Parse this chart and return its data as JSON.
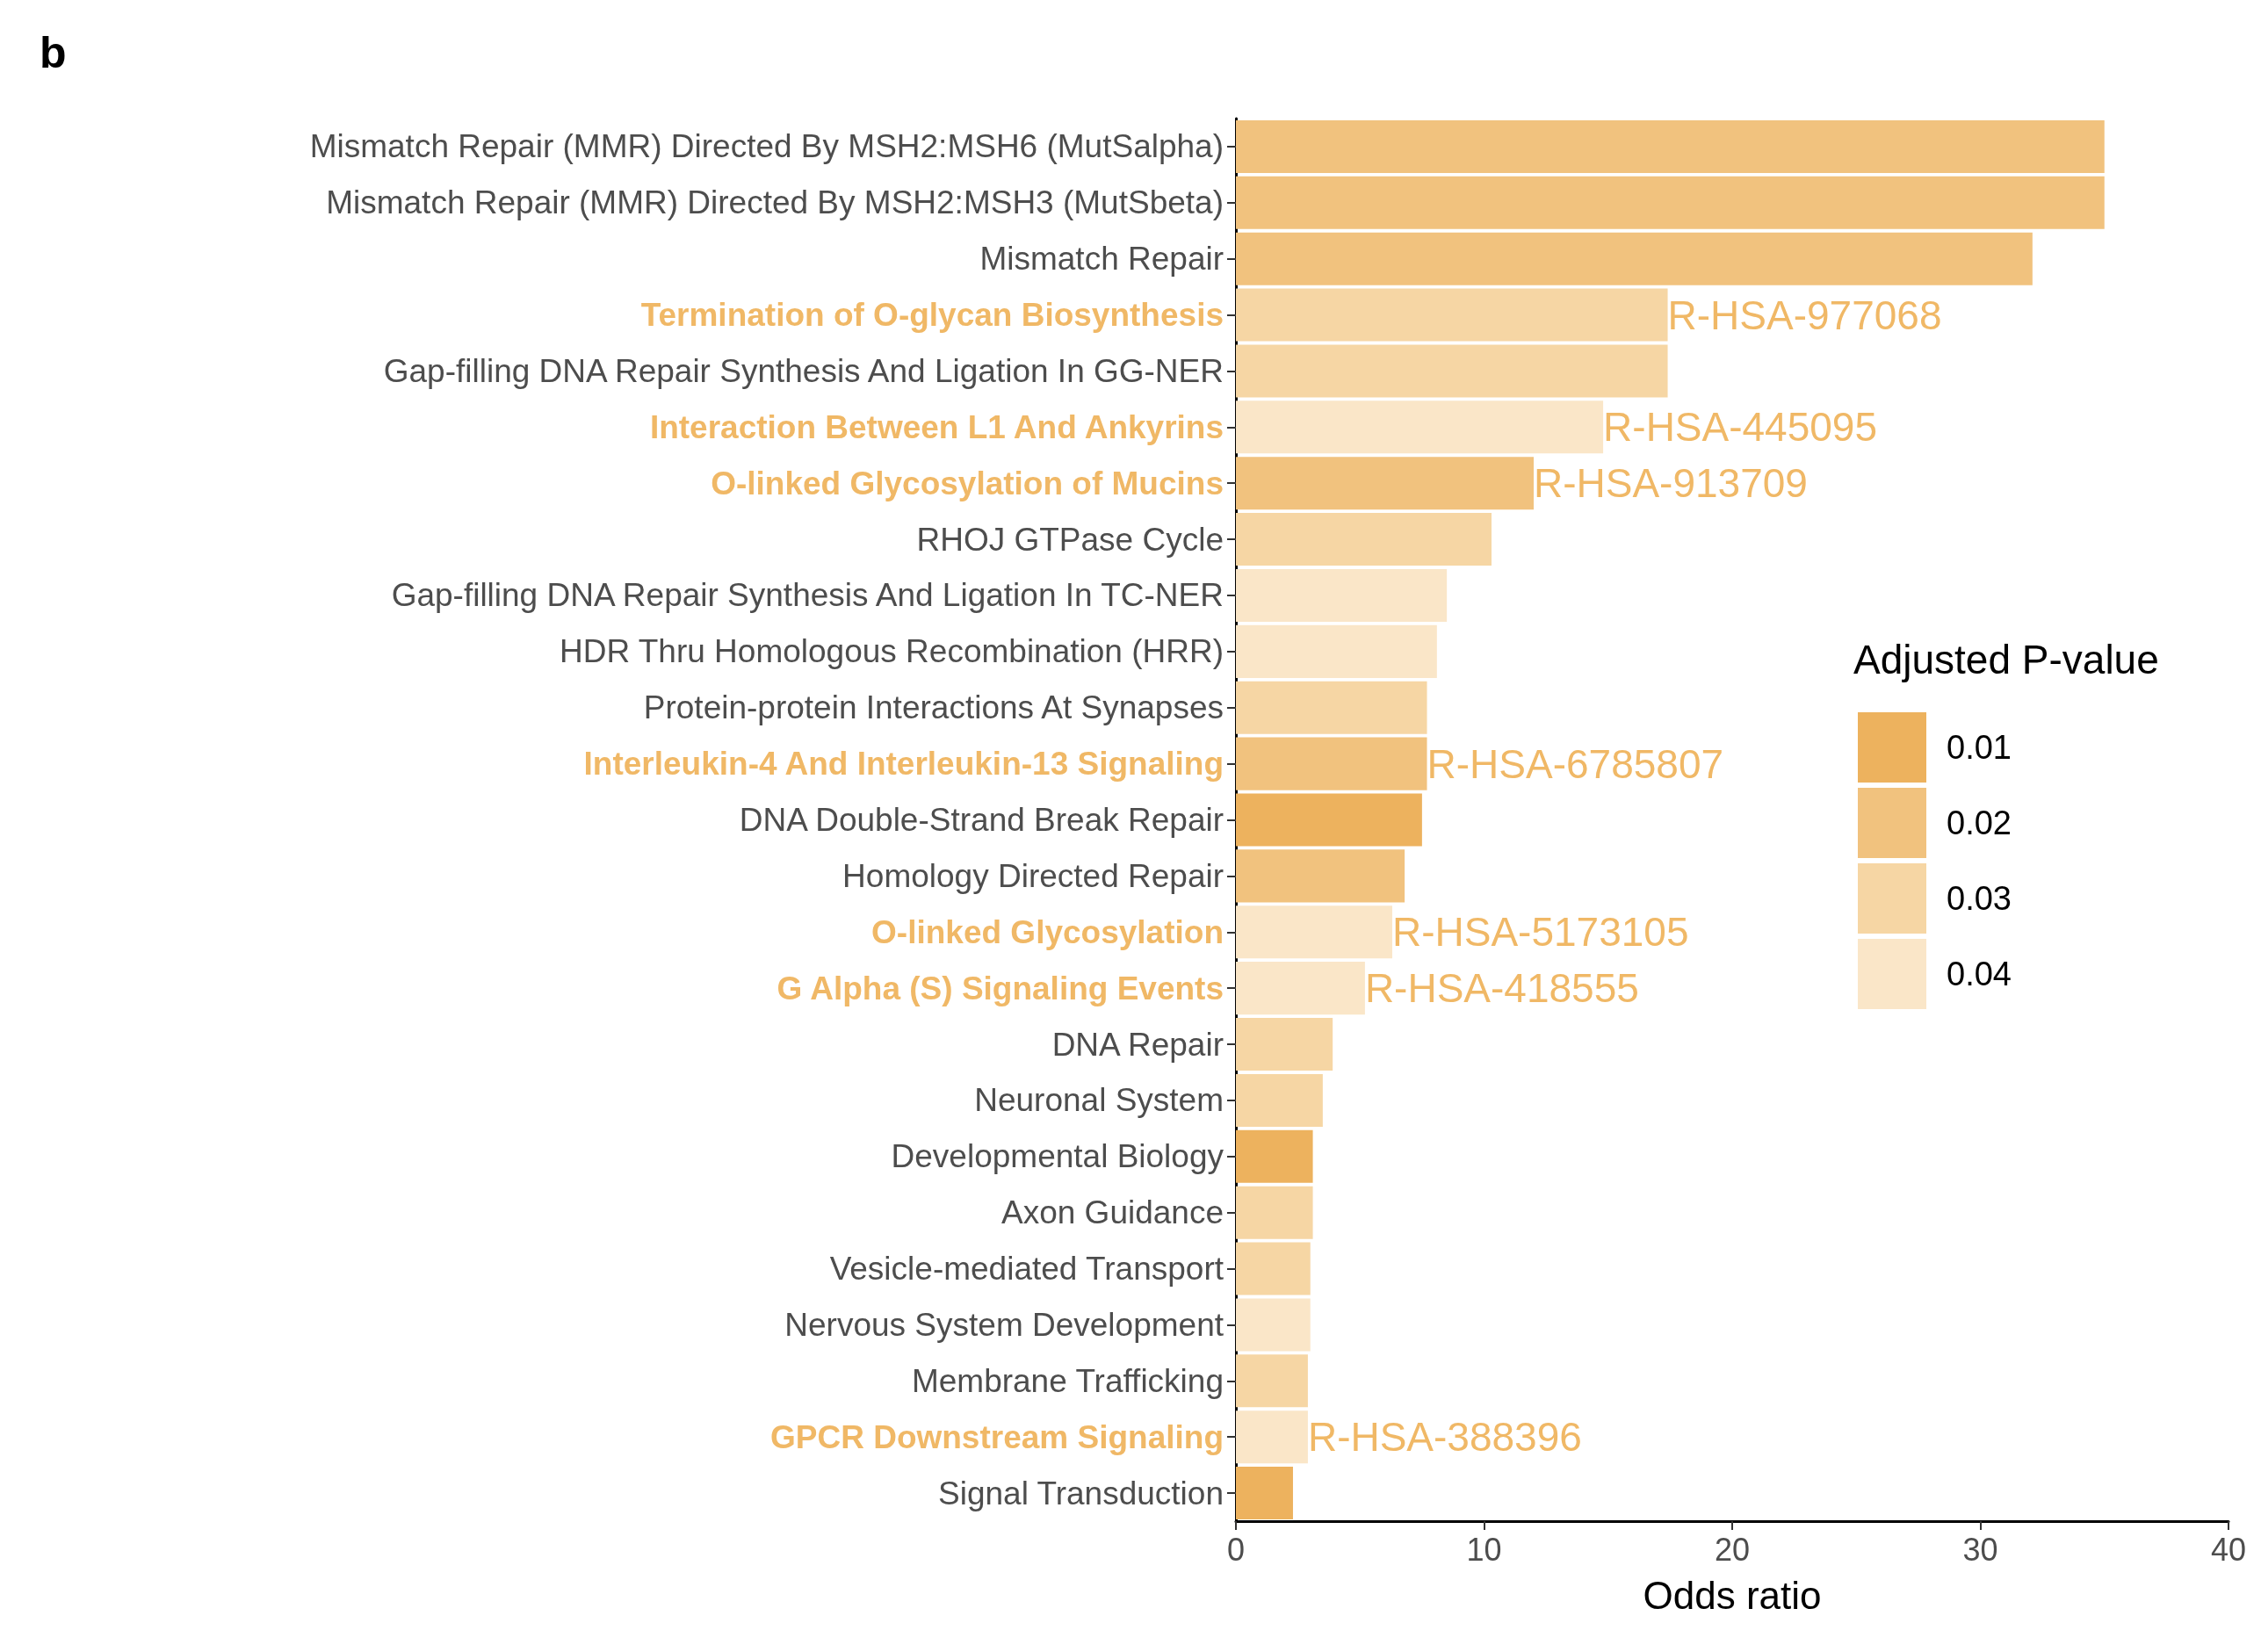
{
  "chart_data": {
    "type": "bar",
    "orientation": "horizontal",
    "stacked": true,
    "title": "b",
    "xlabel": "Odds ratio",
    "legend_title": "Adjusted P-value",
    "categories": [
      "Mismatch Repair (MMR) Directed By MSH2:MSH6 (MutSalpha)",
      "Mismatch Repair (MMR) Directed By MSH2:MSH3 (MutSbeta)",
      "Mismatch Repair",
      "Termination of O-glycan Biosynthesis",
      "Gap-filling DNA Repair Synthesis And Ligation In GG-NER",
      "Interaction Between L1 And Ankyrins",
      "O-linked Glycosylation of Mucins",
      "RHOJ GTPase Cycle",
      "Gap-filling DNA Repair Synthesis And Ligation In TC-NER",
      "HDR Thru Homologous Recombination (HRR)",
      "Protein-protein Interactions At Synapses",
      "Interleukin-4 And Interleukin-13 Signaling",
      "DNA Double-Strand Break Repair",
      "Homology Directed Repair",
      "O-linked Glycosylation",
      "G Alpha (S) Signaling Events",
      "DNA Repair",
      "Neuronal System",
      "Developmental Biology",
      "Axon Guidance",
      "Vesicle-mediated Transport",
      "Nervous System Development",
      "Membrane Trafficking",
      "GPCR Downstream Signaling",
      "Signal Transduction"
    ],
    "series": [
      {
        "name": "0.01",
        "color": "#edb25e",
        "values": [
          null,
          null,
          null,
          null,
          null,
          null,
          null,
          null,
          null,
          null,
          null,
          null,
          7.5,
          null,
          null,
          null,
          null,
          null,
          3.1,
          null,
          null,
          null,
          null,
          null,
          2.3
        ]
      },
      {
        "name": "0.02",
        "color": "#f1c27e",
        "values": [
          35.0,
          35.0,
          32.1,
          null,
          null,
          null,
          12.0,
          null,
          null,
          null,
          null,
          7.7,
          null,
          6.8,
          null,
          null,
          null,
          null,
          null,
          null,
          null,
          null,
          null,
          null,
          null
        ]
      },
      {
        "name": "0.03",
        "color": "#f6d6a4",
        "values": [
          null,
          null,
          null,
          17.4,
          17.4,
          null,
          null,
          10.3,
          null,
          null,
          7.7,
          null,
          null,
          null,
          null,
          null,
          3.9,
          3.5,
          null,
          3.1,
          3.0,
          null,
          2.9,
          null,
          null
        ]
      },
      {
        "name": "0.04",
        "color": "#fae6c8",
        "values": [
          null,
          null,
          null,
          null,
          null,
          14.8,
          null,
          null,
          8.5,
          8.1,
          null,
          null,
          null,
          null,
          6.3,
          5.2,
          null,
          null,
          null,
          null,
          null,
          3.0,
          null,
          2.9,
          null
        ]
      }
    ],
    "xlim": [
      0,
      40
    ],
    "xticks": [
      0,
      10,
      20,
      30,
      40
    ],
    "grid": false,
    "legend": "right",
    "annotations": [
      {
        "text": "R-HSA-977068",
        "x": 17.4,
        "y": "Termination of O-glycan Biosynthesis"
      },
      {
        "text": "R-HSA-445095",
        "x": 14.8,
        "y": "Interaction Between L1 And Ankyrins"
      },
      {
        "text": "R-HSA-913709",
        "x": 12.0,
        "y": "O-linked Glycosylation of Mucins"
      },
      {
        "text": "R-HSA-6785807",
        "x": 7.7,
        "y": "Interleukin-4 And Interleukin-13 Signaling"
      },
      {
        "text": "R-HSA-5173105",
        "x": 6.3,
        "y": "O-linked Glycosylation"
      },
      {
        "text": "R-HSA-418555",
        "x": 5.2,
        "y": "G Alpha (S) Signaling Events"
      },
      {
        "text": "R-HSA-388396",
        "x": 2.9,
        "y": "GPCR Downstream Signaling"
      }
    ]
  }
}
